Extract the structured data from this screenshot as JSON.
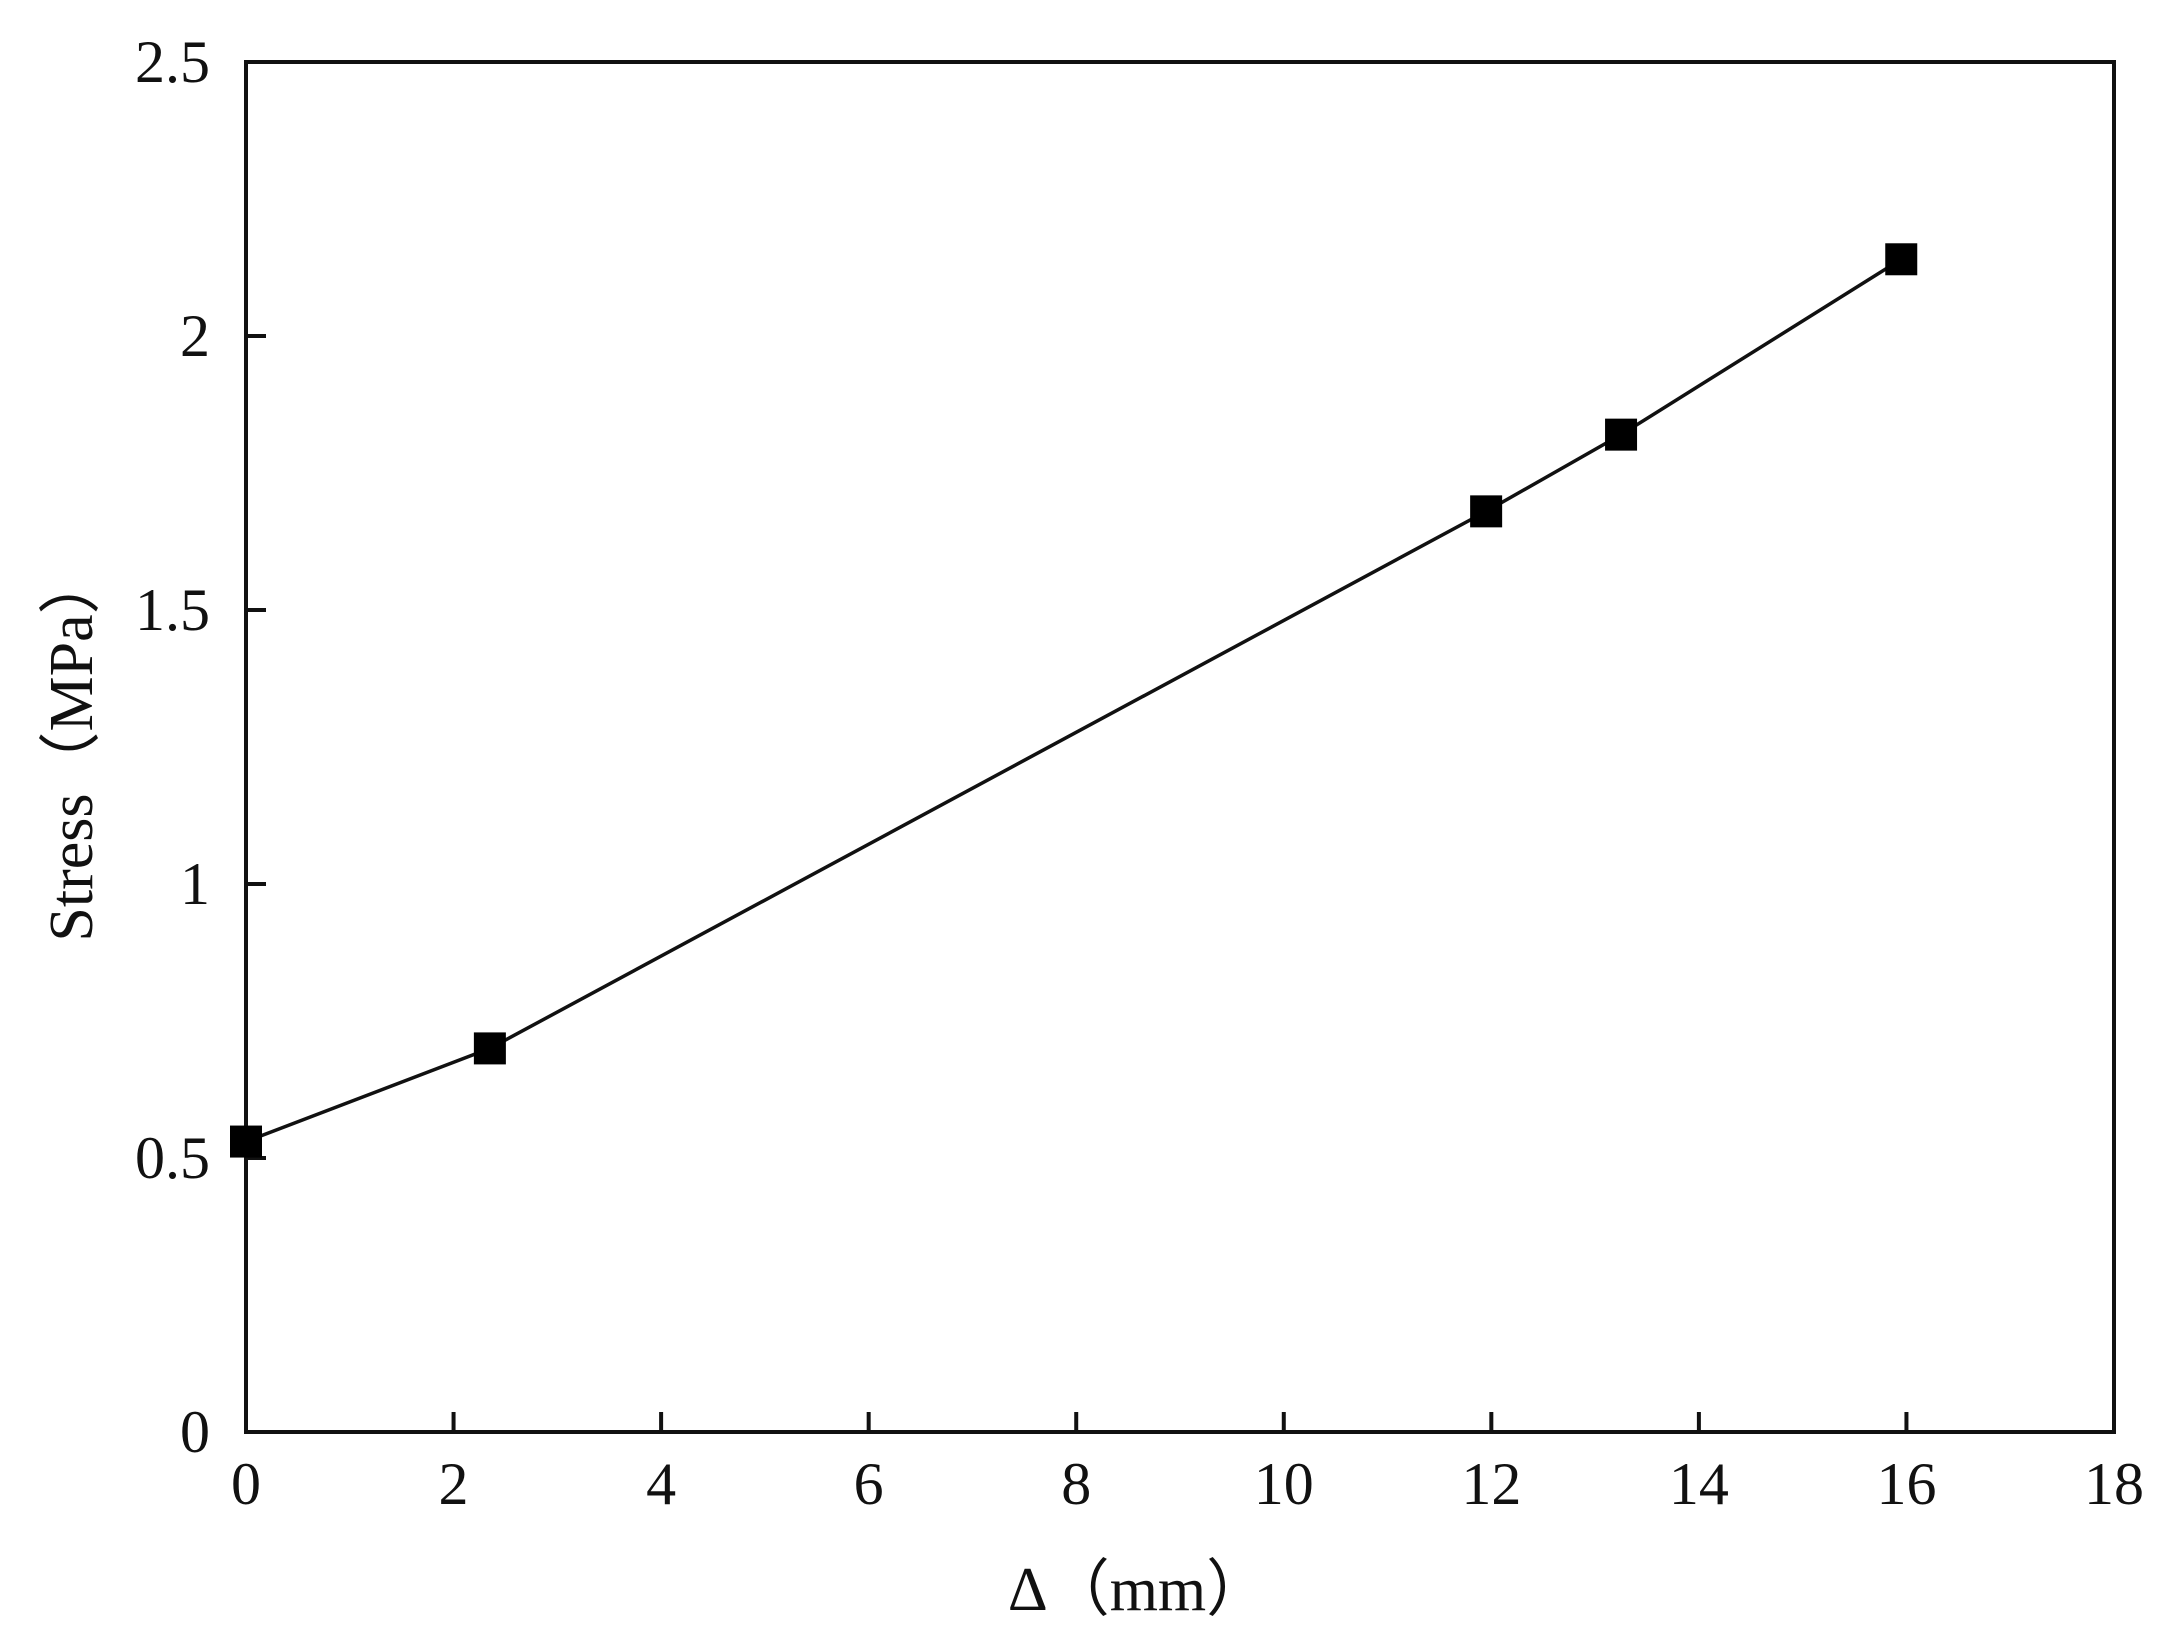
{
  "chart_data": {
    "type": "line",
    "title": "",
    "xlabel": "Δ（mm）",
    "ylabel": "Stress（MPa）",
    "xlim": [
      0,
      18
    ],
    "ylim": [
      0,
      2.5
    ],
    "x_ticks": [
      "0",
      "2",
      "4",
      "6",
      "8",
      "10",
      "12",
      "14",
      "16",
      "18"
    ],
    "y_ticks": [
      "0",
      "0.5",
      "1",
      "1.5",
      "2",
      "2.5"
    ],
    "grid": false,
    "legend": "none",
    "marker": "square",
    "series": [
      {
        "x": [
          0,
          2.35,
          11.95,
          13.25,
          15.95
        ],
        "y": [
          0.53,
          0.7,
          1.68,
          1.82,
          2.14
        ]
      }
    ],
    "colors": {
      "line": "#111111",
      "marker": "#000000",
      "axis": "#111111"
    }
  }
}
